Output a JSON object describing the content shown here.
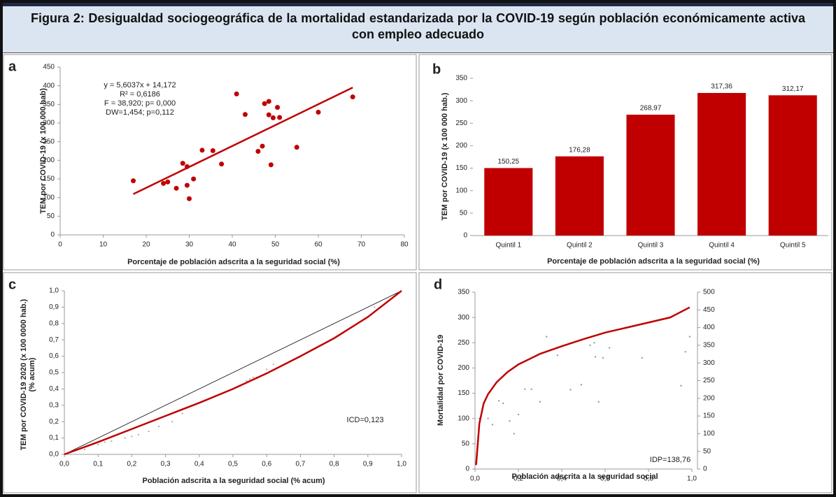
{
  "figure_title": "Figura 2: Desigualdad sociogeográfica de la mortalidad estandarizada por la COVID-19 según población económicamente activa con empleo adecuado",
  "chart_data": [
    {
      "type": "scatter",
      "label": "a",
      "xlabel": "Porcentaje de población adscrita a la seguridad social (%)",
      "ylabel": "TEM  por COVID-19  (x 100 000 hab)",
      "xlim": [
        0,
        80
      ],
      "xticks": [
        0,
        10,
        20,
        30,
        40,
        50,
        60,
        70,
        80
      ],
      "ylim": [
        0,
        450
      ],
      "yticks": [
        0,
        50,
        100,
        150,
        200,
        250,
        300,
        350,
        400,
        450
      ],
      "annotations": [
        "y = 5,6037x + 14,172",
        "R² = 0,6186",
        "F = 38,920;  p= 0,000",
        "DW=1,454;  p=0,112"
      ],
      "series": [
        {
          "mode": "markers",
          "color": "#c00000",
          "x": [
            17,
            24,
            25,
            27,
            28.5,
            29.5,
            29.5,
            30,
            31,
            33,
            35.5,
            37.5,
            41,
            43,
            46,
            47,
            47.5,
            48.5,
            48.5,
            49,
            49.5,
            50.5,
            51,
            55,
            60,
            68
          ],
          "values": [
            145,
            138,
            142,
            125,
            192,
            183,
            133,
            97,
            150,
            227,
            226,
            190,
            378,
            323,
            224,
            238,
            352,
            358,
            322,
            188,
            314,
            342,
            315,
            235,
            329,
            370
          ]
        },
        {
          "mode": "line",
          "color": "#c00000",
          "x": [
            17,
            68
          ],
          "values": [
            109.4,
            395.2
          ]
        }
      ]
    },
    {
      "type": "bar",
      "label": "b",
      "xlabel": "Porcentaje de población adscrita a la seguridad social (%)",
      "ylabel": "TEM  por COVID-19  (x 100 000 hab.)",
      "categories": [
        "Quintil 1",
        "Quintil 2",
        "Quintil 3",
        "Quintil 4",
        "Quintil 5"
      ],
      "values": [
        150.25,
        176.28,
        268.97,
        317.36,
        312.17
      ],
      "value_labels": [
        "150,25",
        "176,28",
        "268,97",
        "317,36",
        "312,17"
      ],
      "color": "#c00000",
      "ylim": [
        0,
        350
      ],
      "yticks": [
        0,
        50,
        100,
        150,
        200,
        250,
        300,
        350
      ]
    },
    {
      "type": "line",
      "label": "c",
      "xlabel": "Población adscrita a la seguridad social (% acum)",
      "ylabel": [
        "TEM por COVID-19 2020 (x 100 0000 hab.)",
        "(% acum)"
      ],
      "xlim": [
        0,
        1
      ],
      "xticks": [
        {
          "value": 0,
          "label": "0,0"
        },
        {
          "value": 0.1,
          "label": "0,1"
        },
        {
          "value": 0.2,
          "label": "0,2"
        },
        {
          "value": 0.3,
          "label": "0,3"
        },
        {
          "value": 0.4,
          "label": "0,4"
        },
        {
          "value": 0.5,
          "label": "0,5"
        },
        {
          "value": 0.6,
          "label": "0,6"
        },
        {
          "value": 0.7,
          "label": "0,7"
        },
        {
          "value": 0.8,
          "label": "0,8"
        },
        {
          "value": 0.9,
          "label": "0,9"
        },
        {
          "value": 1,
          "label": "1,0"
        }
      ],
      "ylim": [
        0,
        1
      ],
      "yticks": [
        {
          "value": 0,
          "label": "0,0"
        },
        {
          "value": 0.1,
          "label": "0,1"
        },
        {
          "value": 0.2,
          "label": "0,2"
        },
        {
          "value": 0.3,
          "label": "0,3"
        },
        {
          "value": 0.4,
          "label": "0,4"
        },
        {
          "value": 0.5,
          "label": "0,5"
        },
        {
          "value": 0.6,
          "label": "0,6"
        },
        {
          "value": 0.7,
          "label": "0,7"
        },
        {
          "value": 0.8,
          "label": "0,8"
        },
        {
          "value": 0.9,
          "label": "0,9"
        },
        {
          "value": 1,
          "label": "1,0"
        }
      ],
      "annotations": [
        "ICD=0,123"
      ],
      "series": [
        {
          "mode": "line",
          "color": "#000000",
          "x": [
            0,
            1
          ],
          "values": [
            0,
            1
          ]
        },
        {
          "mode": "markers",
          "color": "#999999",
          "x": [
            0.06,
            0.1,
            0.12,
            0.14,
            0.18,
            0.2,
            0.22,
            0.25,
            0.28,
            0.32,
            0.35,
            0.42,
            0.54,
            0.55,
            0.56,
            0.57,
            0.6,
            0.62,
            0.92
          ],
          "values": [
            0.03,
            0.06,
            0.075,
            0.08,
            0.1,
            0.11,
            0.12,
            0.14,
            0.17,
            0.2,
            0.25,
            0.33,
            0.45,
            0.46,
            0.47,
            0.47,
            0.52,
            0.55,
            0.9
          ]
        },
        {
          "mode": "line",
          "color": "#c00000",
          "x": [
            0,
            0.1,
            0.2,
            0.3,
            0.4,
            0.5,
            0.6,
            0.7,
            0.8,
            0.9,
            1
          ],
          "values": [
            0,
            0.075,
            0.155,
            0.235,
            0.315,
            0.4,
            0.495,
            0.6,
            0.71,
            0.84,
            1
          ]
        }
      ]
    },
    {
      "type": "line",
      "label": "d",
      "xlabel": "Población adscrita a la seguridad social",
      "ylabel": "Mortalidad por COVID-19",
      "xlim": [
        0,
        1
      ],
      "xticks": [
        {
          "value": 0,
          "label": "0,0"
        },
        {
          "value": 0.2,
          "label": "0,2"
        },
        {
          "value": 0.4,
          "label": "0,4"
        },
        {
          "value": 0.6,
          "label": "0,6"
        },
        {
          "value": 0.8,
          "label": "0,8"
        },
        {
          "value": 1,
          "label": "1,0"
        }
      ],
      "ylim": [
        0,
        350
      ],
      "yticks": [
        0,
        50,
        100,
        150,
        200,
        250,
        300,
        350
      ],
      "y2lim": [
        0,
        500
      ],
      "y2ticks": [
        0,
        50,
        100,
        150,
        200,
        250,
        300,
        350,
        400,
        450,
        500
      ],
      "annotations": [
        "IDP=138,76"
      ],
      "series": [
        {
          "mode": "markers",
          "color": "#999999",
          "x": [
            0.02,
            0.06,
            0.08,
            0.11,
            0.13,
            0.16,
            0.18,
            0.2,
            0.23,
            0.26,
            0.3,
            0.33,
            0.38,
            0.44,
            0.49,
            0.53,
            0.55,
            0.555,
            0.57,
            0.59,
            0.62,
            0.77,
            0.95,
            0.97,
            0.99
          ],
          "values": [
            100,
            100,
            88,
            135,
            130,
            95,
            70,
            108,
            158,
            158,
            133,
            262,
            225,
            157,
            167,
            245,
            250,
            222,
            133,
            220,
            240,
            220,
            165,
            232,
            262
          ]
        },
        {
          "mode": "line",
          "color": "#c00000",
          "x": [
            0.005,
            0.02,
            0.04,
            0.06,
            0.1,
            0.15,
            0.2,
            0.3,
            0.4,
            0.5,
            0.6,
            0.7,
            0.8,
            0.9,
            0.99
          ],
          "values": [
            8,
            90,
            130,
            148,
            172,
            192,
            207,
            228,
            243,
            257,
            270,
            280,
            290,
            300,
            320
          ]
        }
      ]
    }
  ]
}
